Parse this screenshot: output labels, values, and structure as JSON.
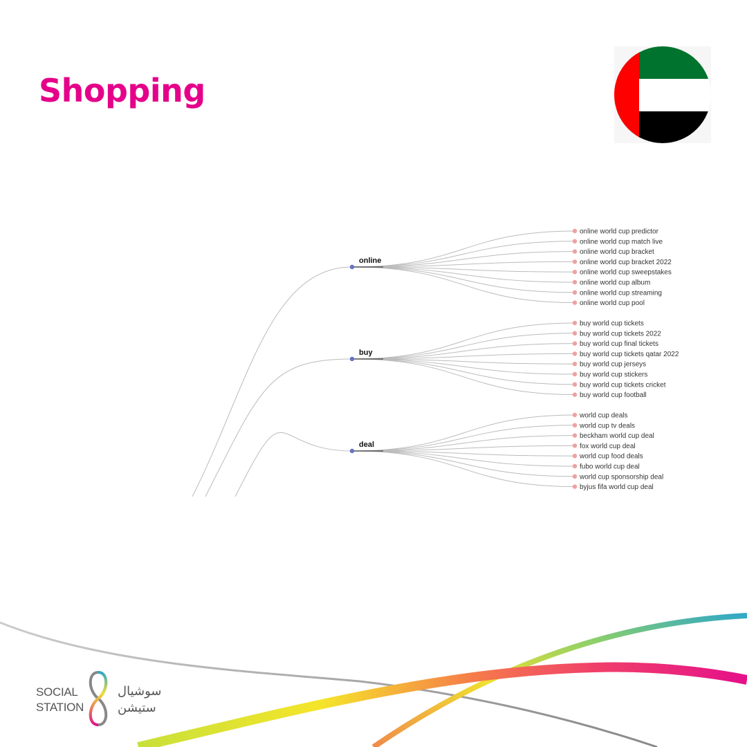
{
  "title": "Shopping",
  "flag": {
    "country": "United Arab Emirates",
    "colors": {
      "green": "#00732f",
      "white": "#ffffff",
      "black": "#000000",
      "red": "#ff0000"
    }
  },
  "colors": {
    "title": "#e5008a",
    "branch_node": "#6673c4",
    "leaf_node": "#f0a0a0",
    "link": "#bbbbbb"
  },
  "tree": {
    "branches": [
      {
        "label": "online",
        "leaves": [
          "online world cup predictor",
          "online world cup match live",
          "online world cup bracket",
          "online world cup bracket 2022",
          "online world cup sweepstakes",
          "online world cup album",
          "online world cup streaming",
          "online world cup pool"
        ]
      },
      {
        "label": "buy",
        "leaves": [
          "buy world cup tickets",
          "buy world cup tickets 2022",
          "buy world cup final tickets",
          "buy world cup tickets qatar 2022",
          "buy world cup jerseys",
          "buy world cup stickers",
          "buy world cup tickets cricket",
          "buy world cup football"
        ]
      },
      {
        "label": "deal",
        "leaves": [
          "world cup deals",
          "world cup tv deals",
          "beckham world cup deal",
          "fox world cup deal",
          "world cup food deals",
          "fubo world cup deal",
          "world cup sponsorship deal",
          "byjus fifa world cup deal"
        ]
      }
    ]
  },
  "logo": {
    "en_line1": "SOCIAL",
    "en_line2": "STATION",
    "ar_line1": "سوشيال",
    "ar_line2": "ستيشن"
  }
}
